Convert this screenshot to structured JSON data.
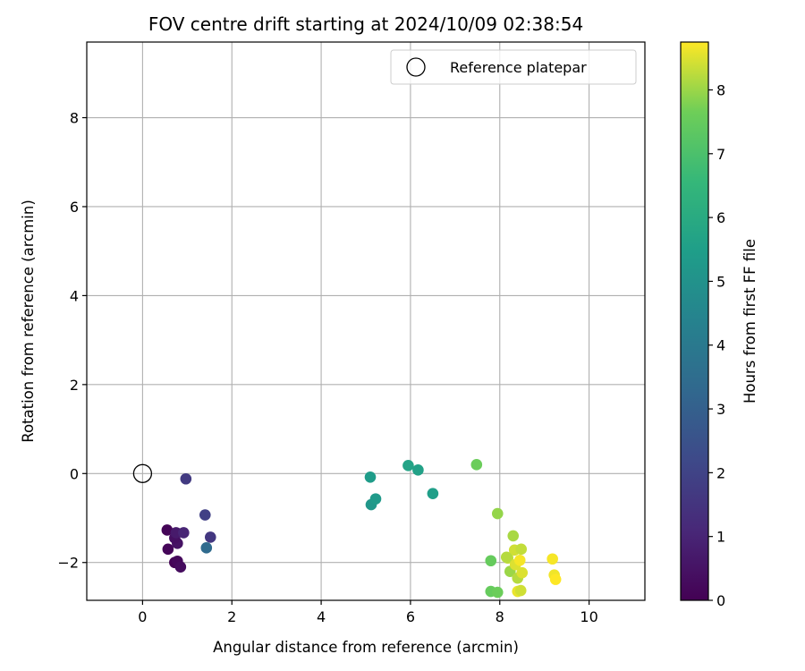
{
  "chart_data": {
    "type": "scatter",
    "title": "FOV centre drift starting at 2024/10/09 02:38:54",
    "xlabel": "Angular distance from reference (arcmin)",
    "ylabel": "Rotation from reference (arcmin)",
    "xlim": [
      -1.25,
      11.25
    ],
    "ylim": [
      -2.85,
      9.7
    ],
    "xticks": [
      0,
      2,
      4,
      6,
      8,
      10
    ],
    "yticks": [
      -2,
      0,
      2,
      4,
      6,
      8
    ],
    "x_tick_labels": [
      "0",
      "2",
      "4",
      "6",
      "8",
      "10"
    ],
    "y_tick_labels": [
      "−2",
      "0",
      "2",
      "4",
      "6",
      "8"
    ],
    "grid": true,
    "legend": {
      "placement": "top-right",
      "entries": [
        {
          "label": "Reference platepar",
          "marker": "open-circle",
          "x": 0,
          "y": 0
        }
      ]
    },
    "colorbar": {
      "label": "Hours from first FF file",
      "colormap": "viridis",
      "range": [
        0,
        8.75
      ],
      "ticks": [
        0,
        1,
        2,
        3,
        4,
        5,
        6,
        7,
        8
      ],
      "tick_labels": [
        "0",
        "1",
        "2",
        "3",
        "4",
        "5",
        "6",
        "7",
        "8"
      ]
    },
    "series": [
      {
        "marker": "filled-circle",
        "points": [
          {
            "x": 0.55,
            "y": -1.27,
            "c": 0.1
          },
          {
            "x": 0.57,
            "y": -1.7,
            "c": 0.15
          },
          {
            "x": 0.72,
            "y": -2.0,
            "c": 0.05
          },
          {
            "x": 0.78,
            "y": -1.97,
            "c": 0.2
          },
          {
            "x": 0.85,
            "y": -2.1,
            "c": 0.3
          },
          {
            "x": 0.78,
            "y": -1.57,
            "c": 0.5
          },
          {
            "x": 0.72,
            "y": -1.45,
            "c": 0.4
          },
          {
            "x": 0.75,
            "y": -1.33,
            "c": 0.7
          },
          {
            "x": 0.92,
            "y": -1.33,
            "c": 1.0
          },
          {
            "x": 0.97,
            "y": -0.12,
            "c": 1.7
          },
          {
            "x": 1.4,
            "y": -0.93,
            "c": 1.9
          },
          {
            "x": 1.52,
            "y": -1.43,
            "c": 1.6
          },
          {
            "x": 1.43,
            "y": -1.67,
            "c": 3.4
          },
          {
            "x": 5.1,
            "y": -0.08,
            "c": 5.4
          },
          {
            "x": 5.12,
            "y": -0.7,
            "c": 5.2
          },
          {
            "x": 5.22,
            "y": -0.57,
            "c": 5.3
          },
          {
            "x": 5.95,
            "y": 0.18,
            "c": 5.7
          },
          {
            "x": 6.17,
            "y": 0.08,
            "c": 5.6
          },
          {
            "x": 6.5,
            "y": -0.45,
            "c": 5.5
          },
          {
            "x": 7.48,
            "y": 0.2,
            "c": 7.6
          },
          {
            "x": 7.95,
            "y": -0.9,
            "c": 7.95
          },
          {
            "x": 7.8,
            "y": -1.96,
            "c": 7.5
          },
          {
            "x": 7.8,
            "y": -2.65,
            "c": 7.5
          },
          {
            "x": 7.95,
            "y": -2.67,
            "c": 7.6
          },
          {
            "x": 8.18,
            "y": -1.9,
            "c": 8.3
          },
          {
            "x": 8.23,
            "y": -2.2,
            "c": 8.0
          },
          {
            "x": 8.3,
            "y": -1.4,
            "c": 8.1
          },
          {
            "x": 8.33,
            "y": -1.72,
            "c": 8.4
          },
          {
            "x": 8.35,
            "y": -2.05,
            "c": 8.5
          },
          {
            "x": 8.4,
            "y": -2.35,
            "c": 8.2
          },
          {
            "x": 8.4,
            "y": -2.65,
            "c": 8.6
          },
          {
            "x": 8.45,
            "y": -1.95,
            "c": 8.7
          },
          {
            "x": 8.48,
            "y": -1.7,
            "c": 8.3
          },
          {
            "x": 8.5,
            "y": -2.23,
            "c": 8.5
          },
          {
            "x": 8.47,
            "y": -2.63,
            "c": 8.4
          },
          {
            "x": 8.15,
            "y": -1.88,
            "c": 8.2
          },
          {
            "x": 9.18,
            "y": -1.92,
            "c": 8.7
          },
          {
            "x": 9.22,
            "y": -2.28,
            "c": 8.65
          },
          {
            "x": 9.25,
            "y": -2.38,
            "c": 8.75
          }
        ]
      }
    ]
  }
}
